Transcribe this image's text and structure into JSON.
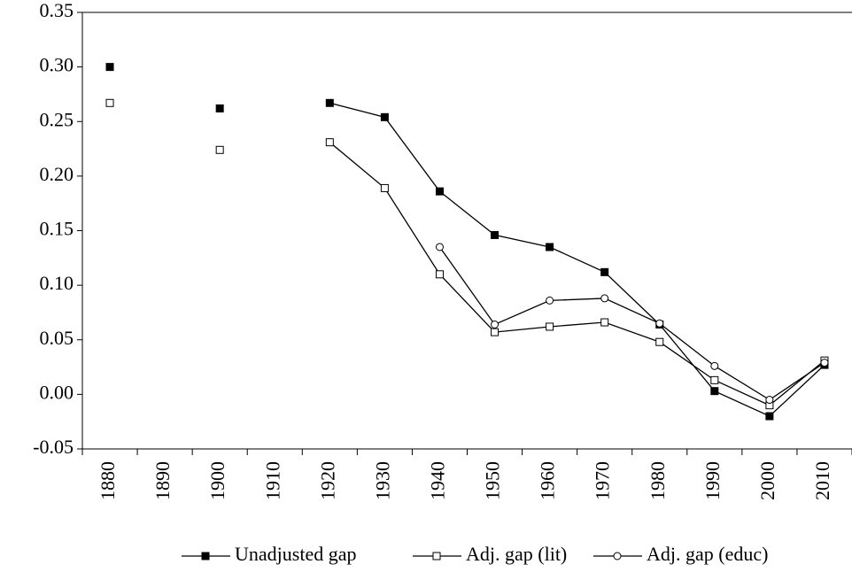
{
  "chart_data": {
    "type": "line",
    "categories": [
      "1880",
      "1890",
      "1900",
      "1910",
      "1920",
      "1930",
      "1940",
      "1950",
      "1960",
      "1970",
      "1980",
      "1990",
      "2000",
      "2010"
    ],
    "series": [
      {
        "name": "Unadjusted gap",
        "color": "#000000",
        "marker": "square-filled",
        "values": [
          0.3,
          null,
          0.262,
          null,
          0.267,
          0.254,
          0.186,
          0.146,
          0.135,
          0.112,
          0.064,
          0.003,
          -0.02,
          0.027
        ]
      },
      {
        "name": "Adj. gap (lit)",
        "color": "#000000",
        "marker": "square-open",
        "values": [
          0.267,
          null,
          0.224,
          null,
          0.231,
          0.189,
          0.11,
          0.057,
          0.062,
          0.066,
          0.048,
          0.013,
          -0.01,
          0.031
        ]
      },
      {
        "name": "Adj. gap (educ)",
        "color": "#000000",
        "marker": "circle-open",
        "values": [
          null,
          null,
          null,
          null,
          null,
          null,
          0.135,
          0.064,
          0.086,
          0.088,
          0.065,
          0.026,
          -0.005,
          0.029
        ]
      }
    ],
    "ylim": [
      -0.05,
      0.35
    ],
    "yticks": [
      -0.05,
      {
        "value": 0,
        "label": "0.00"
      },
      0.05,
      {
        "value": 0.1,
        "label": "0.10"
      },
      0.15,
      {
        "value": 0.2,
        "label": "0.20"
      },
      0.25,
      {
        "value": 0.3,
        "label": "0.30"
      },
      0.35
    ],
    "grid": false,
    "legend": "bottom"
  }
}
